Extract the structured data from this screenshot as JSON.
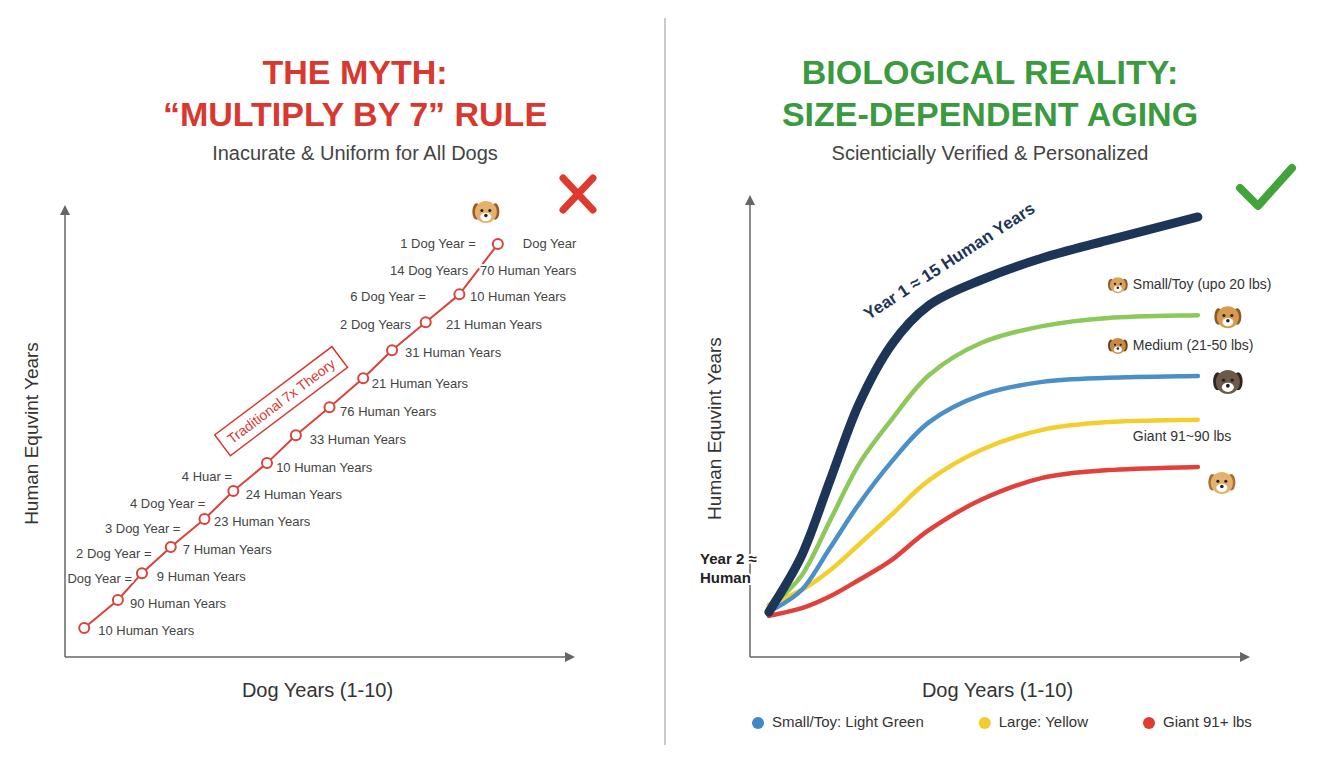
{
  "chart_data": [
    {
      "type": "line",
      "title": "THE MYTH: “MULTIPLY BY 7” RULE",
      "subtitle": "Inacurate & Uniform for All Dogs",
      "x_label": "Dog Years (1-10)",
      "y_label": "Human Equvint Years",
      "xlim": [
        0,
        10.5
      ],
      "ylim": [
        0,
        80
      ],
      "tick_labels": false,
      "grid": false,
      "x": [
        0.4,
        1.1,
        1.6,
        2.2,
        2.9,
        3.5,
        4.2,
        4.8,
        5.5,
        6.2,
        6.8,
        7.5,
        8.2,
        9.0
      ],
      "series": [
        {
          "color": "#d9433b",
          "marker": "circle",
          "line_style": "solid",
          "values": [
            5.2,
            10.2,
            15.0,
            19.7,
            24.7,
            29.7,
            34.7,
            39.7,
            44.7,
            49.9,
            54.9,
            59.9,
            64.9,
            73.9
          ]
        }
      ],
      "callout": {
        "text": "Traditional 7x Theory",
        "x": 4.51,
        "y": 45.6
      },
      "annotations": [
        {
          "text": "Dog Year",
          "x": 9.52,
          "y": 73.7
        },
        {
          "text": "70 Human Years",
          "x": 8.63,
          "y": 68.9
        },
        {
          "text": "10 Human Years",
          "x": 8.42,
          "y": 64.2
        },
        {
          "text": "21 Human Years",
          "x": 7.92,
          "y": 59.2
        },
        {
          "text": "31 Human Years",
          "x": 7.07,
          "y": 54.2
        },
        {
          "text": "21 Human Years",
          "x": 6.38,
          "y": 48.7
        },
        {
          "text": "76 Human Years",
          "x": 5.72,
          "y": 43.7
        },
        {
          "text": "33 Human Years",
          "x": 5.09,
          "y": 38.7
        },
        {
          "text": "10 Human Years",
          "x": 4.39,
          "y": 33.6
        },
        {
          "text": "24 Human Years",
          "x": 3.76,
          "y": 28.8
        },
        {
          "text": "23 Human Years",
          "x": 3.1,
          "y": 24.0
        },
        {
          "text": "7 Human Years",
          "x": 2.45,
          "y": 19.0
        },
        {
          "text": "9 Human Years",
          "x": 1.91,
          "y": 14.1
        },
        {
          "text": "90 Human Years",
          "x": 1.35,
          "y": 9.3
        },
        {
          "text": "10 Human Years",
          "x": 0.69,
          "y": 4.5
        },
        {
          "text": "1 Dog Year =",
          "x": 6.97,
          "y": 73.7
        },
        {
          "text": "14 Dog Years",
          "x": 6.76,
          "y": 68.9
        },
        {
          "text": "6 Dog Year =",
          "x": 5.93,
          "y": 64.2
        },
        {
          "text": "2 Dog Years",
          "x": 5.72,
          "y": 59.2
        },
        {
          "text": "4 Huar =",
          "x": 2.43,
          "y": 32.0
        },
        {
          "text": "4 Dog Year =",
          "x": 1.35,
          "y": 27.2
        },
        {
          "text": "3 Dog Year =",
          "x": 0.83,
          "y": 22.7
        },
        {
          "text": "2 Dog Year =",
          "x": 0.23,
          "y": 18.3
        },
        {
          "text": "Dog Year =",
          "x": 0.05,
          "y": 13.8
        }
      ]
    },
    {
      "type": "line",
      "title": "BIOLOGICAL REALITY: SIZE-DEPENDENT AGING",
      "subtitle": "Scienticially Verified & Personalized",
      "x_label": "Dog Years (1-10)",
      "y_label": "Human Equvint Years",
      "xlim": [
        0,
        10.5
      ],
      "ylim": [
        0,
        100
      ],
      "tick_labels": false,
      "grid": false,
      "legend": "bottom",
      "x": [
        0.4,
        1.1,
        1.7,
        2.3,
        3.0,
        3.8,
        4.9,
        6.2,
        7.6,
        9.5
      ],
      "series": [
        {
          "color": "#1d3557",
          "line_style": "smooth",
          "values": [
            9.8,
            22.3,
            38.7,
            55.1,
            68.3,
            77.0,
            82.5,
            87.3,
            91.2,
            96.3
          ]
        },
        {
          "name": "Small/Toy (upo 20 lbs)",
          "color": "#8cc95a",
          "line_style": "smooth",
          "values": [
            10.7,
            17.9,
            29.9,
            42.0,
            51.9,
            61.7,
            68.7,
            72.4,
            74.2,
            74.8
          ]
        },
        {
          "name": "Medium (21-50 lbs)",
          "color": "#4b8fc9",
          "line_style": "smooth",
          "values": [
            9.8,
            14.7,
            23.9,
            33.3,
            42.7,
            51.4,
            57.3,
            60.2,
            61.1,
            61.5
          ]
        },
        {
          "color": "#f2cf2e",
          "line_style": "smooth",
          "values": [
            11.4,
            14.7,
            19.0,
            24.5,
            31.1,
            38.7,
            45.3,
            49.7,
            51.4,
            51.9
          ]
        },
        {
          "name": "Giant 91~90 lbs",
          "color": "#e2403a",
          "line_style": "smooth",
          "values": [
            9.0,
            10.7,
            13.3,
            16.8,
            21.2,
            27.8,
            34.4,
            39.2,
            40.9,
            41.6
          ]
        }
      ],
      "callout": {
        "text": "Year 1 ≈ 15 Human Years",
        "x": 4.24,
        "y": 86.4
      },
      "annotations": [
        {
          "text": "Year 2 ≈ Human",
          "x": -1.06,
          "y": 21.2
        }
      ],
      "legend_entries": [
        {
          "label": "Small/Toy: Light Green",
          "color": "#3f88c5"
        },
        {
          "label": "Large: Yellow",
          "color": "#f2cc2f"
        },
        {
          "label": "Giant 91+ lbs",
          "color": "#e03c31"
        }
      ]
    }
  ]
}
